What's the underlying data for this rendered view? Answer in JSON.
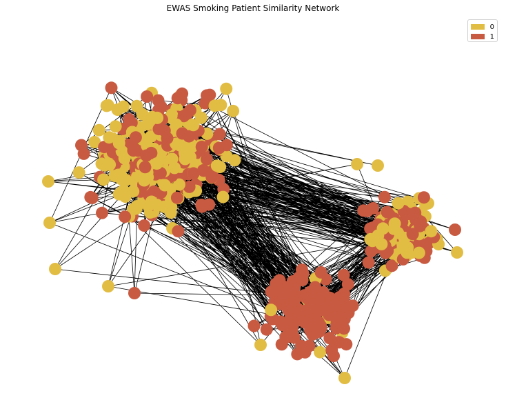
{
  "title": "EWAS Smoking Patient Similarity Network",
  "legend": [
    {
      "label": "0",
      "color": "#E2BD44"
    },
    {
      "label": "1",
      "color": "#C85A41"
    }
  ],
  "colors": {
    "edge": "#000000",
    "background": "#ffffff"
  },
  "chart_data": {
    "type": "network",
    "node_classes": [
      "0",
      "1"
    ],
    "legend_position": "top-right",
    "clusters": [
      {
        "name": "upper-left community",
        "dominant_class": "0"
      },
      {
        "name": "right community",
        "dominant_class": "0"
      },
      {
        "name": "lower-center community",
        "dominant_class": "1"
      }
    ]
  }
}
